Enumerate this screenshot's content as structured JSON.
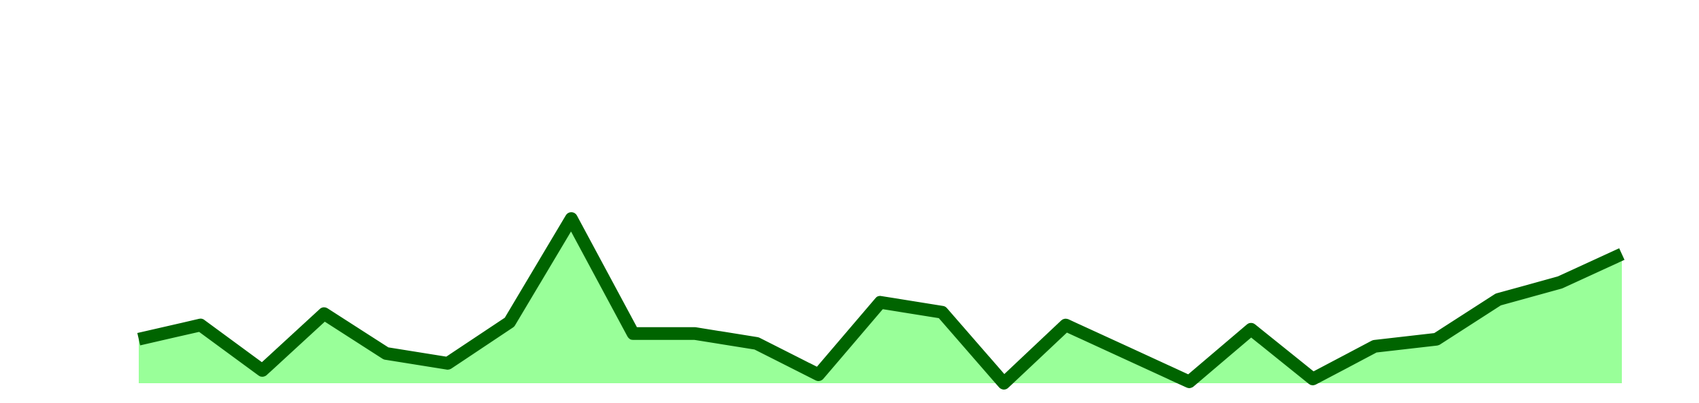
{
  "chart_data": {
    "type": "area",
    "title": "",
    "xlabel": "",
    "ylabel": "",
    "x": [
      1,
      2,
      3,
      4,
      5,
      6,
      7,
      8,
      9,
      10,
      11,
      12,
      13,
      14,
      15,
      16,
      17,
      18,
      19,
      20,
      21,
      22,
      23,
      24,
      25
    ],
    "series": [
      {
        "values": [
          3.1,
          4.1,
          0.9,
          4.9,
          2.1,
          1.4,
          4.3,
          11.6,
          3.5,
          3.5,
          2.8,
          0.6,
          5.7,
          5.0,
          0.0,
          4.1,
          2.1,
          0.1,
          3.8,
          0.3,
          2.6,
          3.1,
          5.9,
          7.1,
          9.1
        ],
        "line_color": "#006400",
        "fill_color": "#99ff99"
      }
    ],
    "ylim": [
      0,
      27
    ],
    "grid": false,
    "legend": "none",
    "axes_visible": false
  }
}
